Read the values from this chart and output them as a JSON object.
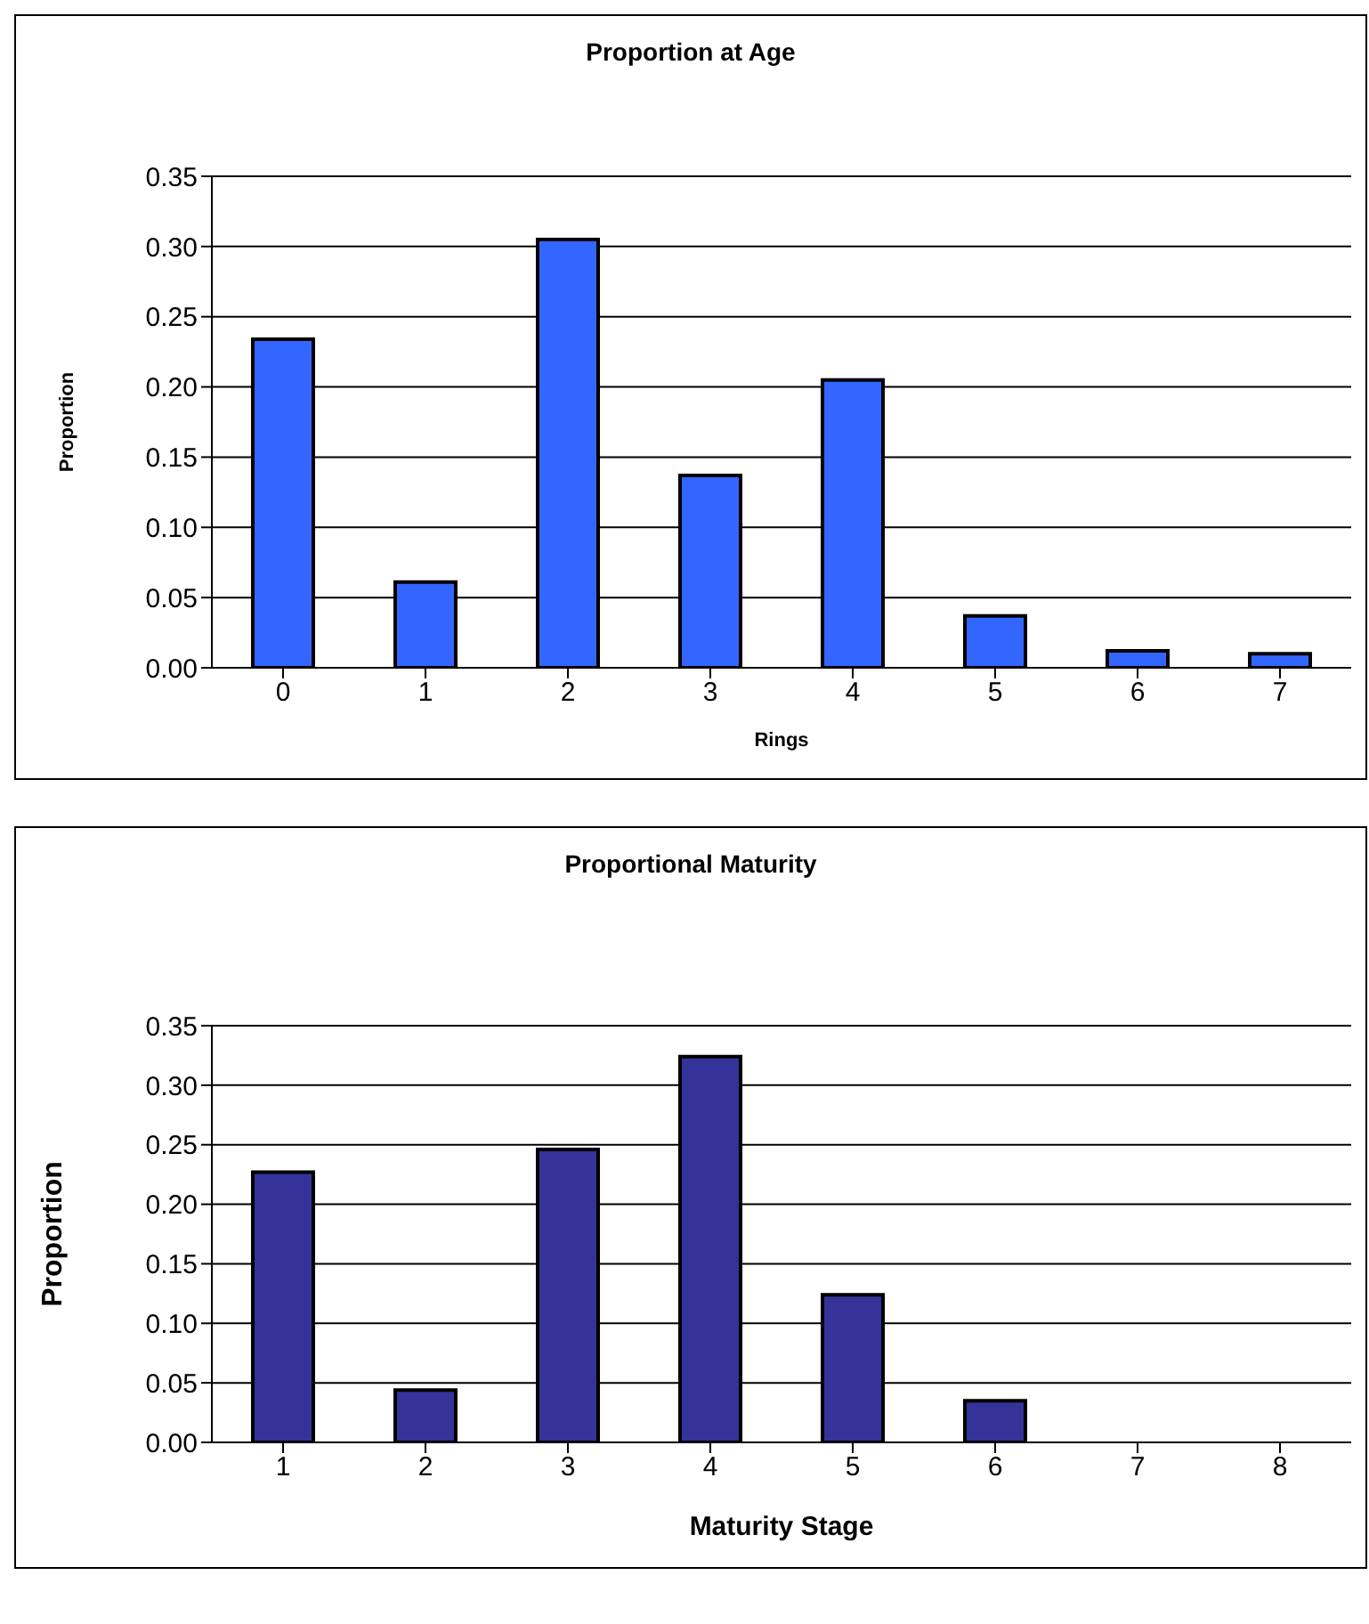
{
  "chart_data": [
    {
      "type": "bar",
      "title": "Proportion at Age",
      "xlabel": "Rings",
      "ylabel": "Proportion",
      "categories": [
        "0",
        "1",
        "2",
        "3",
        "4",
        "5",
        "6",
        "7"
      ],
      "values": [
        0.234,
        0.061,
        0.305,
        0.137,
        0.205,
        0.037,
        0.012,
        0.01
      ],
      "color": "#3366ff",
      "ylim": [
        0,
        0.35
      ],
      "yticks": [
        {
          "value": 0,
          "label": "0.00"
        },
        {
          "value": 0.05,
          "label": "0.05"
        },
        {
          "value": 0.1,
          "label": "0.10"
        },
        {
          "value": 0.15,
          "label": "0.15"
        },
        {
          "value": 0.2,
          "label": "0.20"
        },
        {
          "value": 0.25,
          "label": "0.25"
        },
        {
          "value": 0.3,
          "label": "0.30"
        },
        {
          "value": 0.35,
          "label": "0.35"
        }
      ],
      "grid": "y",
      "legend": false
    },
    {
      "type": "bar",
      "title": "Proportional Maturity",
      "xlabel": "Maturity Stage",
      "ylabel": "Proportion",
      "categories": [
        "1",
        "2",
        "3",
        "4",
        "5",
        "6",
        "7",
        "8"
      ],
      "values": [
        0.227,
        0.044,
        0.246,
        0.324,
        0.124,
        0.035,
        0,
        0
      ],
      "color": "#333399",
      "ylim": [
        0,
        0.35
      ],
      "yticks": [
        {
          "value": 0,
          "label": "0.00"
        },
        {
          "value": 0.05,
          "label": "0.05"
        },
        {
          "value": 0.1,
          "label": "0.10"
        },
        {
          "value": 0.15,
          "label": "0.15"
        },
        {
          "value": 0.2,
          "label": "0.20"
        },
        {
          "value": 0.25,
          "label": "0.25"
        },
        {
          "value": 0.3,
          "label": "0.30"
        },
        {
          "value": 0.35,
          "label": "0.35"
        }
      ],
      "grid": "y",
      "legend": false
    }
  ]
}
